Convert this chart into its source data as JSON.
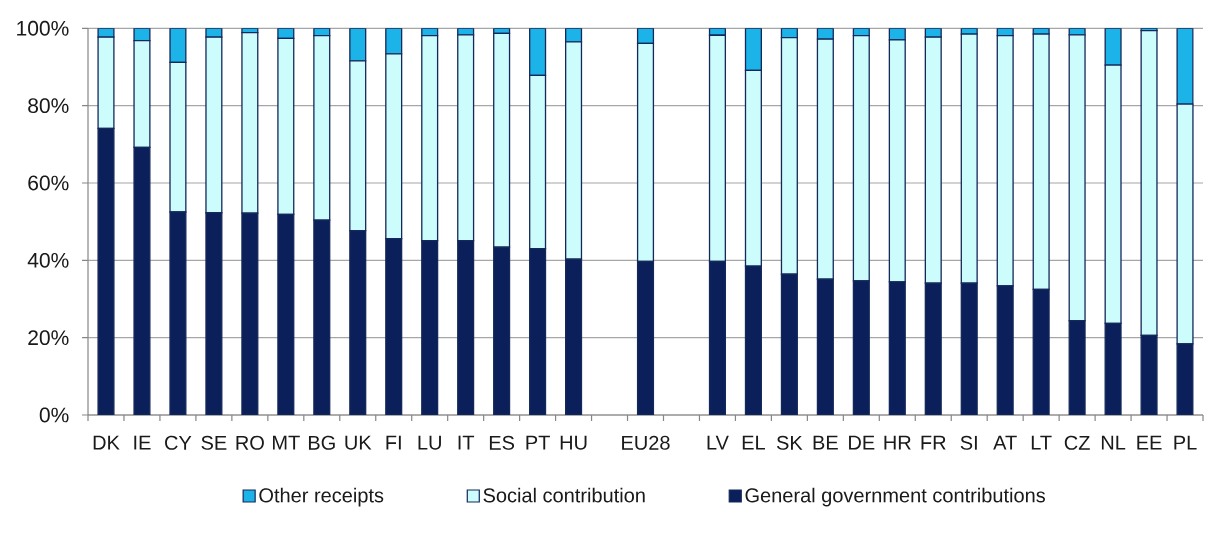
{
  "chart_data": {
    "type": "bar",
    "stacked": true,
    "categories": [
      "DK",
      "IE",
      "CY",
      "SE",
      "RO",
      "MT",
      "BG",
      "UK",
      "FI",
      "LU",
      "IT",
      "ES",
      "PT",
      "HU",
      null,
      "EU28",
      null,
      "LV",
      "EL",
      "SK",
      "BE",
      "DE",
      "HR",
      "FR",
      "SI",
      "AT",
      "LT",
      "CZ",
      "NL",
      "EE",
      "PL"
    ],
    "series": [
      {
        "name": "General government contributions",
        "color": "#0b1f5b",
        "values": [
          74.1,
          69.2,
          52.5,
          52.3,
          52.2,
          51.9,
          50.4,
          47.7,
          45.6,
          45.1,
          45.1,
          43.4,
          43.0,
          40.3,
          null,
          39.7,
          null,
          39.7,
          38.5,
          36.4,
          35.1,
          34.7,
          34.4,
          34.1,
          34.1,
          33.4,
          32.5,
          24.4,
          23.7,
          20.6,
          18.4
        ]
      },
      {
        "name": "Social contribution",
        "color": "#ccfcfc",
        "values": [
          23.6,
          27.6,
          38.7,
          45.4,
          46.7,
          45.5,
          47.7,
          43.9,
          47.8,
          53.0,
          53.2,
          55.3,
          44.8,
          56.2,
          null,
          56.4,
          null,
          58.5,
          50.6,
          61.2,
          62.1,
          63.4,
          62.6,
          63.6,
          64.4,
          64.7,
          66.0,
          73.9,
          66.8,
          78.8,
          62.0
        ]
      },
      {
        "name": "Other receipts",
        "color": "#1cb4e8",
        "values": [
          2.3,
          3.2,
          8.8,
          2.3,
          1.1,
          2.6,
          1.9,
          8.4,
          6.6,
          1.9,
          1.7,
          1.3,
          12.2,
          3.5,
          null,
          3.9,
          null,
          1.8,
          10.9,
          2.4,
          2.8,
          1.9,
          3.0,
          2.3,
          1.5,
          1.9,
          1.5,
          1.7,
          9.5,
          0.6,
          19.6
        ]
      }
    ],
    "ylim": [
      0,
      100
    ],
    "yticks": [
      {
        "value": 0,
        "label": "0%"
      },
      {
        "value": 20,
        "label": "20%"
      },
      {
        "value": 40,
        "label": "40%"
      },
      {
        "value": 60,
        "label": "60%"
      },
      {
        "value": 80,
        "label": "80%"
      },
      {
        "value": 100,
        "label": "100%"
      }
    ],
    "grid": "y",
    "legend": "bottom"
  }
}
